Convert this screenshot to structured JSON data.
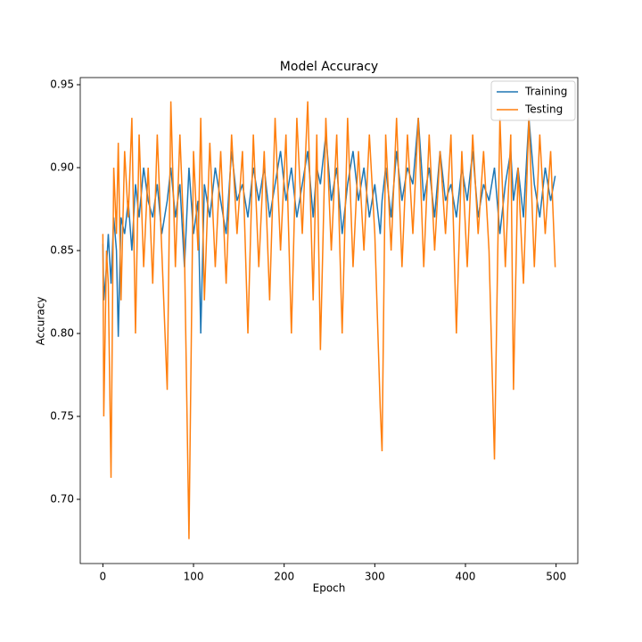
{
  "chart_data": {
    "type": "line",
    "title": "Model Accuracy",
    "xlabel": "Epoch",
    "ylabel": "Accuracy",
    "x": [
      0,
      1,
      4,
      6,
      9,
      12,
      15,
      17,
      20,
      24,
      28,
      32,
      36,
      40,
      45,
      50,
      55,
      60,
      65,
      71,
      75,
      80,
      85,
      90,
      95,
      100,
      105,
      108,
      112,
      118,
      124,
      130,
      136,
      142,
      148,
      154,
      160,
      166,
      172,
      178,
      184,
      190,
      196,
      202,
      208,
      214,
      220,
      226,
      232,
      236,
      240,
      246,
      252,
      258,
      264,
      270,
      276,
      282,
      288,
      294,
      300,
      306,
      308,
      312,
      318,
      324,
      330,
      336,
      342,
      348,
      354,
      360,
      366,
      372,
      378,
      384,
      390,
      396,
      402,
      408,
      414,
      420,
      426,
      432,
      438,
      444,
      450,
      453,
      458,
      464,
      470,
      476,
      482,
      488,
      494,
      499
    ],
    "series": [
      {
        "name": "Training",
        "color": "#1f77b4",
        "values": [
          0.854,
          0.82,
          0.84,
          0.86,
          0.83,
          0.87,
          0.85,
          0.798,
          0.87,
          0.86,
          0.88,
          0.85,
          0.89,
          0.87,
          0.9,
          0.88,
          0.87,
          0.89,
          0.86,
          0.88,
          0.9,
          0.87,
          0.89,
          0.84,
          0.9,
          0.86,
          0.88,
          0.8,
          0.89,
          0.87,
          0.9,
          0.88,
          0.86,
          0.91,
          0.88,
          0.89,
          0.87,
          0.9,
          0.88,
          0.9,
          0.87,
          0.89,
          0.91,
          0.88,
          0.9,
          0.87,
          0.89,
          0.91,
          0.87,
          0.9,
          0.89,
          0.92,
          0.88,
          0.9,
          0.86,
          0.89,
          0.91,
          0.88,
          0.9,
          0.87,
          0.89,
          0.86,
          0.88,
          0.9,
          0.87,
          0.91,
          0.88,
          0.9,
          0.89,
          0.93,
          0.88,
          0.9,
          0.87,
          0.91,
          0.88,
          0.89,
          0.87,
          0.9,
          0.88,
          0.91,
          0.87,
          0.89,
          0.88,
          0.9,
          0.86,
          0.89,
          0.91,
          0.88,
          0.9,
          0.87,
          0.93,
          0.89,
          0.87,
          0.9,
          0.88,
          0.895
        ]
      },
      {
        "name": "Testing",
        "color": "#ff7f0e",
        "values": [
          0.86,
          0.75,
          0.85,
          0.83,
          0.713,
          0.9,
          0.86,
          0.915,
          0.82,
          0.91,
          0.87,
          0.93,
          0.8,
          0.92,
          0.84,
          0.9,
          0.83,
          0.92,
          0.85,
          0.766,
          0.94,
          0.84,
          0.92,
          0.85,
          0.676,
          0.91,
          0.85,
          0.93,
          0.82,
          0.915,
          0.84,
          0.91,
          0.83,
          0.92,
          0.86,
          0.91,
          0.8,
          0.92,
          0.84,
          0.91,
          0.82,
          0.93,
          0.85,
          0.92,
          0.8,
          0.93,
          0.86,
          0.94,
          0.82,
          0.92,
          0.79,
          0.93,
          0.85,
          0.92,
          0.8,
          0.93,
          0.84,
          0.91,
          0.85,
          0.92,
          0.86,
          0.755,
          0.729,
          0.92,
          0.85,
          0.93,
          0.84,
          0.92,
          0.86,
          0.93,
          0.84,
          0.92,
          0.85,
          0.91,
          0.86,
          0.92,
          0.8,
          0.91,
          0.84,
          0.92,
          0.86,
          0.91,
          0.85,
          0.724,
          0.93,
          0.84,
          0.92,
          0.766,
          0.9,
          0.83,
          0.93,
          0.84,
          0.92,
          0.86,
          0.91,
          0.84
        ]
      }
    ],
    "xlim": [
      -24.95,
      523.95
    ],
    "xticks": [
      0,
      100,
      200,
      300,
      400,
      500
    ],
    "ylim": [
      0.6613,
      0.9543
    ],
    "yticks": [
      {
        "value": 0.7,
        "label": "0.70"
      },
      0.75,
      {
        "value": 0.8,
        "label": "0.80"
      },
      0.85,
      {
        "value": 0.9,
        "label": "0.90"
      },
      0.95
    ],
    "legend": "upper right"
  }
}
